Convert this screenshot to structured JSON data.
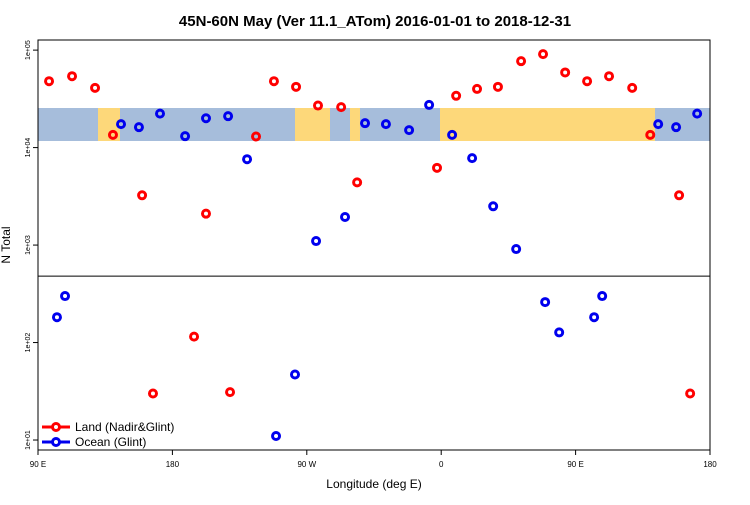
{
  "chart_data": {
    "type": "scatter",
    "title": "45N-60N May (Ver 11.1_ATom)   2016-01-01 to 2018-12-31",
    "x_label": "Longitude (deg E)",
    "y_label": "N Total",
    "log_y": true,
    "xlim": [
      90,
      540
    ],
    "ylim": [
      7.9,
      127000
    ],
    "xticks": [
      {
        "value": 90,
        "label": "90 E"
      },
      {
        "value": 180,
        "label": "180"
      },
      {
        "value": 270,
        "label": "90 W"
      },
      {
        "value": 360,
        "label": "0"
      },
      {
        "value": 450,
        "label": "90 E"
      },
      {
        "value": 540,
        "label": "180"
      }
    ],
    "yticks": [
      {
        "value": 10,
        "label": "1e+01"
      },
      {
        "value": 100,
        "label": "1e+02"
      },
      {
        "value": 1000,
        "label": "1e+03"
      },
      {
        "value": 10000,
        "label": "1e+04"
      },
      {
        "value": 100000,
        "label": "1e+05"
      }
    ],
    "hline": 480,
    "legend": "bottom-left",
    "series": [
      {
        "name": "Land (Nadir&Glint)",
        "color": "#ff0000",
        "x": [
          97.4,
          112.8,
          128.2,
          140.2,
          159.7,
          167,
          194.5,
          202.5,
          218.6,
          236,
          248,
          262.8,
          277.5,
          293,
          303.7,
          357.2,
          370,
          384,
          398,
          413.5,
          428.2,
          443,
          457.7,
          472.4,
          487.9,
          500,
          519.3,
          526.7
        ],
        "values": [
          48000,
          54000,
          41000,
          13500,
          3240,
          30,
          115,
          2100,
          31,
          13000,
          48000,
          42000,
          27000,
          26000,
          4400,
          6200,
          34000,
          40000,
          42000,
          77000,
          91000,
          59000,
          48000,
          54000,
          41000,
          13500,
          3240,
          30
        ]
      },
      {
        "name": "Ocean (Glint)",
        "color": "#0000ee",
        "x": [
          102.7,
          108.1,
          145.6,
          157.6,
          171.7,
          188.5,
          202.5,
          217.3,
          230,
          249.4,
          262.1,
          276.2,
          295.6,
          309,
          323,
          338.5,
          351.9,
          367.3,
          380.7,
          394.8,
          410.2,
          429.6,
          439,
          462.4,
          467.8,
          505.3,
          517.3,
          531.4
        ],
        "values": [
          182,
          300,
          17400,
          16200,
          22300,
          13100,
          20000,
          21000,
          7600,
          11,
          47,
          1100,
          1940,
          17800,
          17400,
          15100,
          27400,
          13500,
          7800,
          2500,
          910,
          260,
          127,
          182,
          300,
          17400,
          16200,
          22300
        ]
      }
    ]
  }
}
